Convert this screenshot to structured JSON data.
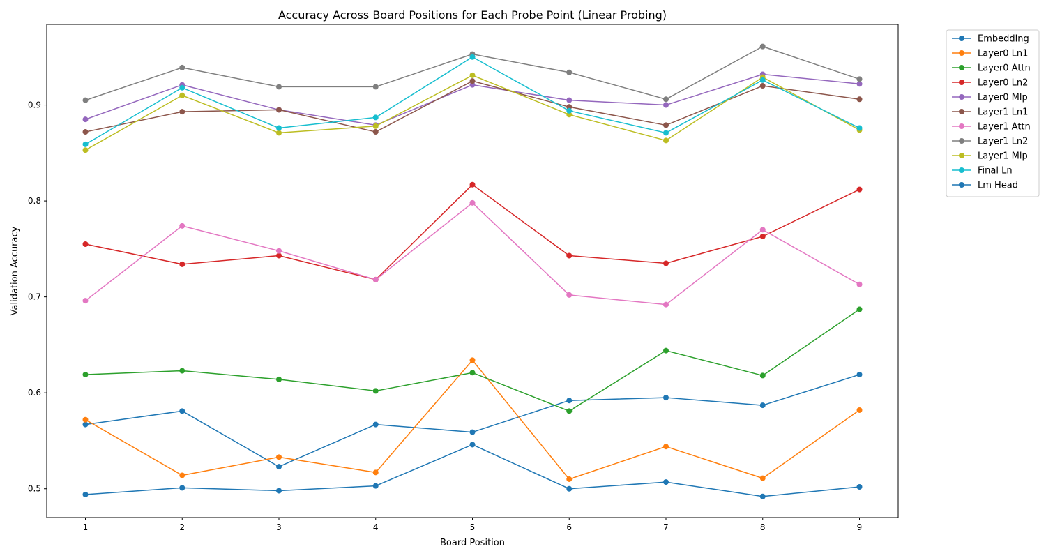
{
  "chart_data": {
    "type": "line",
    "title": "Accuracy Across Board Positions for Each Probe Point (Linear Probing)",
    "xlabel": "Board Position",
    "ylabel": "Validation Accuracy",
    "x": [
      1,
      2,
      3,
      4,
      5,
      6,
      7,
      8,
      9
    ],
    "xticks": [
      "1",
      "2",
      "3",
      "4",
      "5",
      "6",
      "7",
      "8",
      "9"
    ],
    "yticks": [
      0.5,
      0.6,
      0.7,
      0.8,
      0.9
    ],
    "ytick_labels": [
      "0.5",
      "0.6",
      "0.7",
      "0.8",
      "0.9"
    ],
    "xlim": [
      0.6,
      9.4
    ],
    "ylim": [
      0.47,
      0.984
    ],
    "grid": false,
    "legend_position": "outside-top-right",
    "series": [
      {
        "name": "Embedding",
        "color": "#1f77b4",
        "values": [
          0.567,
          0.581,
          0.523,
          0.567,
          0.559,
          0.592,
          0.595,
          0.587,
          0.619
        ]
      },
      {
        "name": "Layer0 Ln1",
        "color": "#ff7f0e",
        "values": [
          0.572,
          0.514,
          0.533,
          0.517,
          0.634,
          0.51,
          0.544,
          0.511,
          0.582
        ]
      },
      {
        "name": "Layer0 Attn",
        "color": "#2ca02c",
        "values": [
          0.619,
          0.623,
          0.614,
          0.602,
          0.621,
          0.581,
          0.644,
          0.618,
          0.687
        ]
      },
      {
        "name": "Layer0 Ln2",
        "color": "#d62728",
        "values": [
          0.755,
          0.734,
          0.743,
          0.718,
          0.817,
          0.743,
          0.735,
          0.763,
          0.812
        ]
      },
      {
        "name": "Layer0 Mlp",
        "color": "#9467bd",
        "values": [
          0.885,
          0.921,
          0.895,
          0.879,
          0.921,
          0.905,
          0.9,
          0.932,
          0.922
        ]
      },
      {
        "name": "Layer1 Ln1",
        "color": "#8c564b",
        "values": [
          0.872,
          0.893,
          0.895,
          0.872,
          0.925,
          0.898,
          0.879,
          0.92,
          0.906
        ]
      },
      {
        "name": "Layer1 Attn",
        "color": "#e377c2",
        "values": [
          0.696,
          0.774,
          0.748,
          0.718,
          0.798,
          0.702,
          0.692,
          0.77,
          0.713
        ]
      },
      {
        "name": "Layer1 Ln2",
        "color": "#7f7f7f",
        "values": [
          0.905,
          0.939,
          0.919,
          0.919,
          0.953,
          0.934,
          0.906,
          0.961,
          0.927
        ]
      },
      {
        "name": "Layer1 Mlp",
        "color": "#bcbd22",
        "values": [
          0.853,
          0.91,
          0.871,
          0.878,
          0.931,
          0.89,
          0.863,
          0.929,
          0.874
        ]
      },
      {
        "name": "Final Ln",
        "color": "#17becf",
        "values": [
          0.859,
          0.918,
          0.876,
          0.887,
          0.95,
          0.894,
          0.871,
          0.926,
          0.876
        ]
      },
      {
        "name": "Lm Head",
        "color": "#1f77b4",
        "values": [
          0.494,
          0.501,
          0.498,
          0.503,
          0.546,
          0.5,
          0.507,
          0.492,
          0.502
        ]
      }
    ]
  }
}
